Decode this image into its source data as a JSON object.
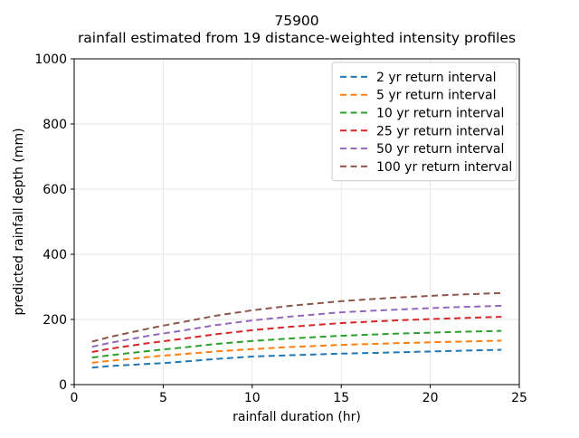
{
  "figure": {
    "background": "#ffffff",
    "text_color": "#000000",
    "grid_color": "#e6e6e6",
    "spine_color": "#000000",
    "legend_border_color": "#cccccc",
    "legend_background": "#ffffff"
  },
  "chart_data": {
    "type": "line",
    "title": "75900",
    "subtitle": "rainfall estimated from 19 distance-weighted intensity profiles",
    "xlabel": "rainfall duration (hr)",
    "ylabel": "predicted rainfall depth (mm)",
    "xlim": [
      0,
      25
    ],
    "ylim": [
      0,
      1000
    ],
    "xticks": [
      0,
      5,
      10,
      15,
      20,
      25
    ],
    "yticks": [
      0,
      200,
      400,
      600,
      800,
      1000
    ],
    "grid": true,
    "legend_position": "upper right",
    "line_style": "dashed",
    "x": [
      1,
      2,
      3,
      4,
      5,
      6,
      8,
      10,
      12,
      15,
      18,
      21,
      24
    ],
    "series": [
      {
        "name": "2 yr return interval",
        "color": "#1f77b4",
        "values": [
          52,
          57,
          60,
          63,
          66,
          70,
          79,
          86,
          90,
          95,
          99,
          103,
          107
        ]
      },
      {
        "name": "5 yr return interval",
        "color": "#ff7f0e",
        "values": [
          67,
          73,
          78,
          84,
          89,
          93,
          102,
          109,
          115,
          122,
          127,
          131,
          135
        ]
      },
      {
        "name": "10 yr return interval",
        "color": "#2ca02c",
        "values": [
          83,
          90,
          96,
          102,
          108,
          113,
          125,
          134,
          141,
          150,
          156,
          161,
          165
        ]
      },
      {
        "name": "25 yr return interval",
        "color": "#d62728",
        "values": [
          100,
          110,
          118,
          126,
          133,
          140,
          155,
          167,
          177,
          189,
          197,
          203,
          208
        ]
      },
      {
        "name": "50 yr return interval",
        "color": "#9467bd",
        "values": [
          116,
          128,
          138,
          148,
          157,
          165,
          183,
          197,
          208,
          222,
          230,
          237,
          242
        ]
      },
      {
        "name": "100 yr return interval",
        "color": "#8c564b",
        "values": [
          132,
          146,
          158,
          170,
          181,
          191,
          212,
          228,
          241,
          256,
          267,
          275,
          281
        ]
      }
    ]
  }
}
